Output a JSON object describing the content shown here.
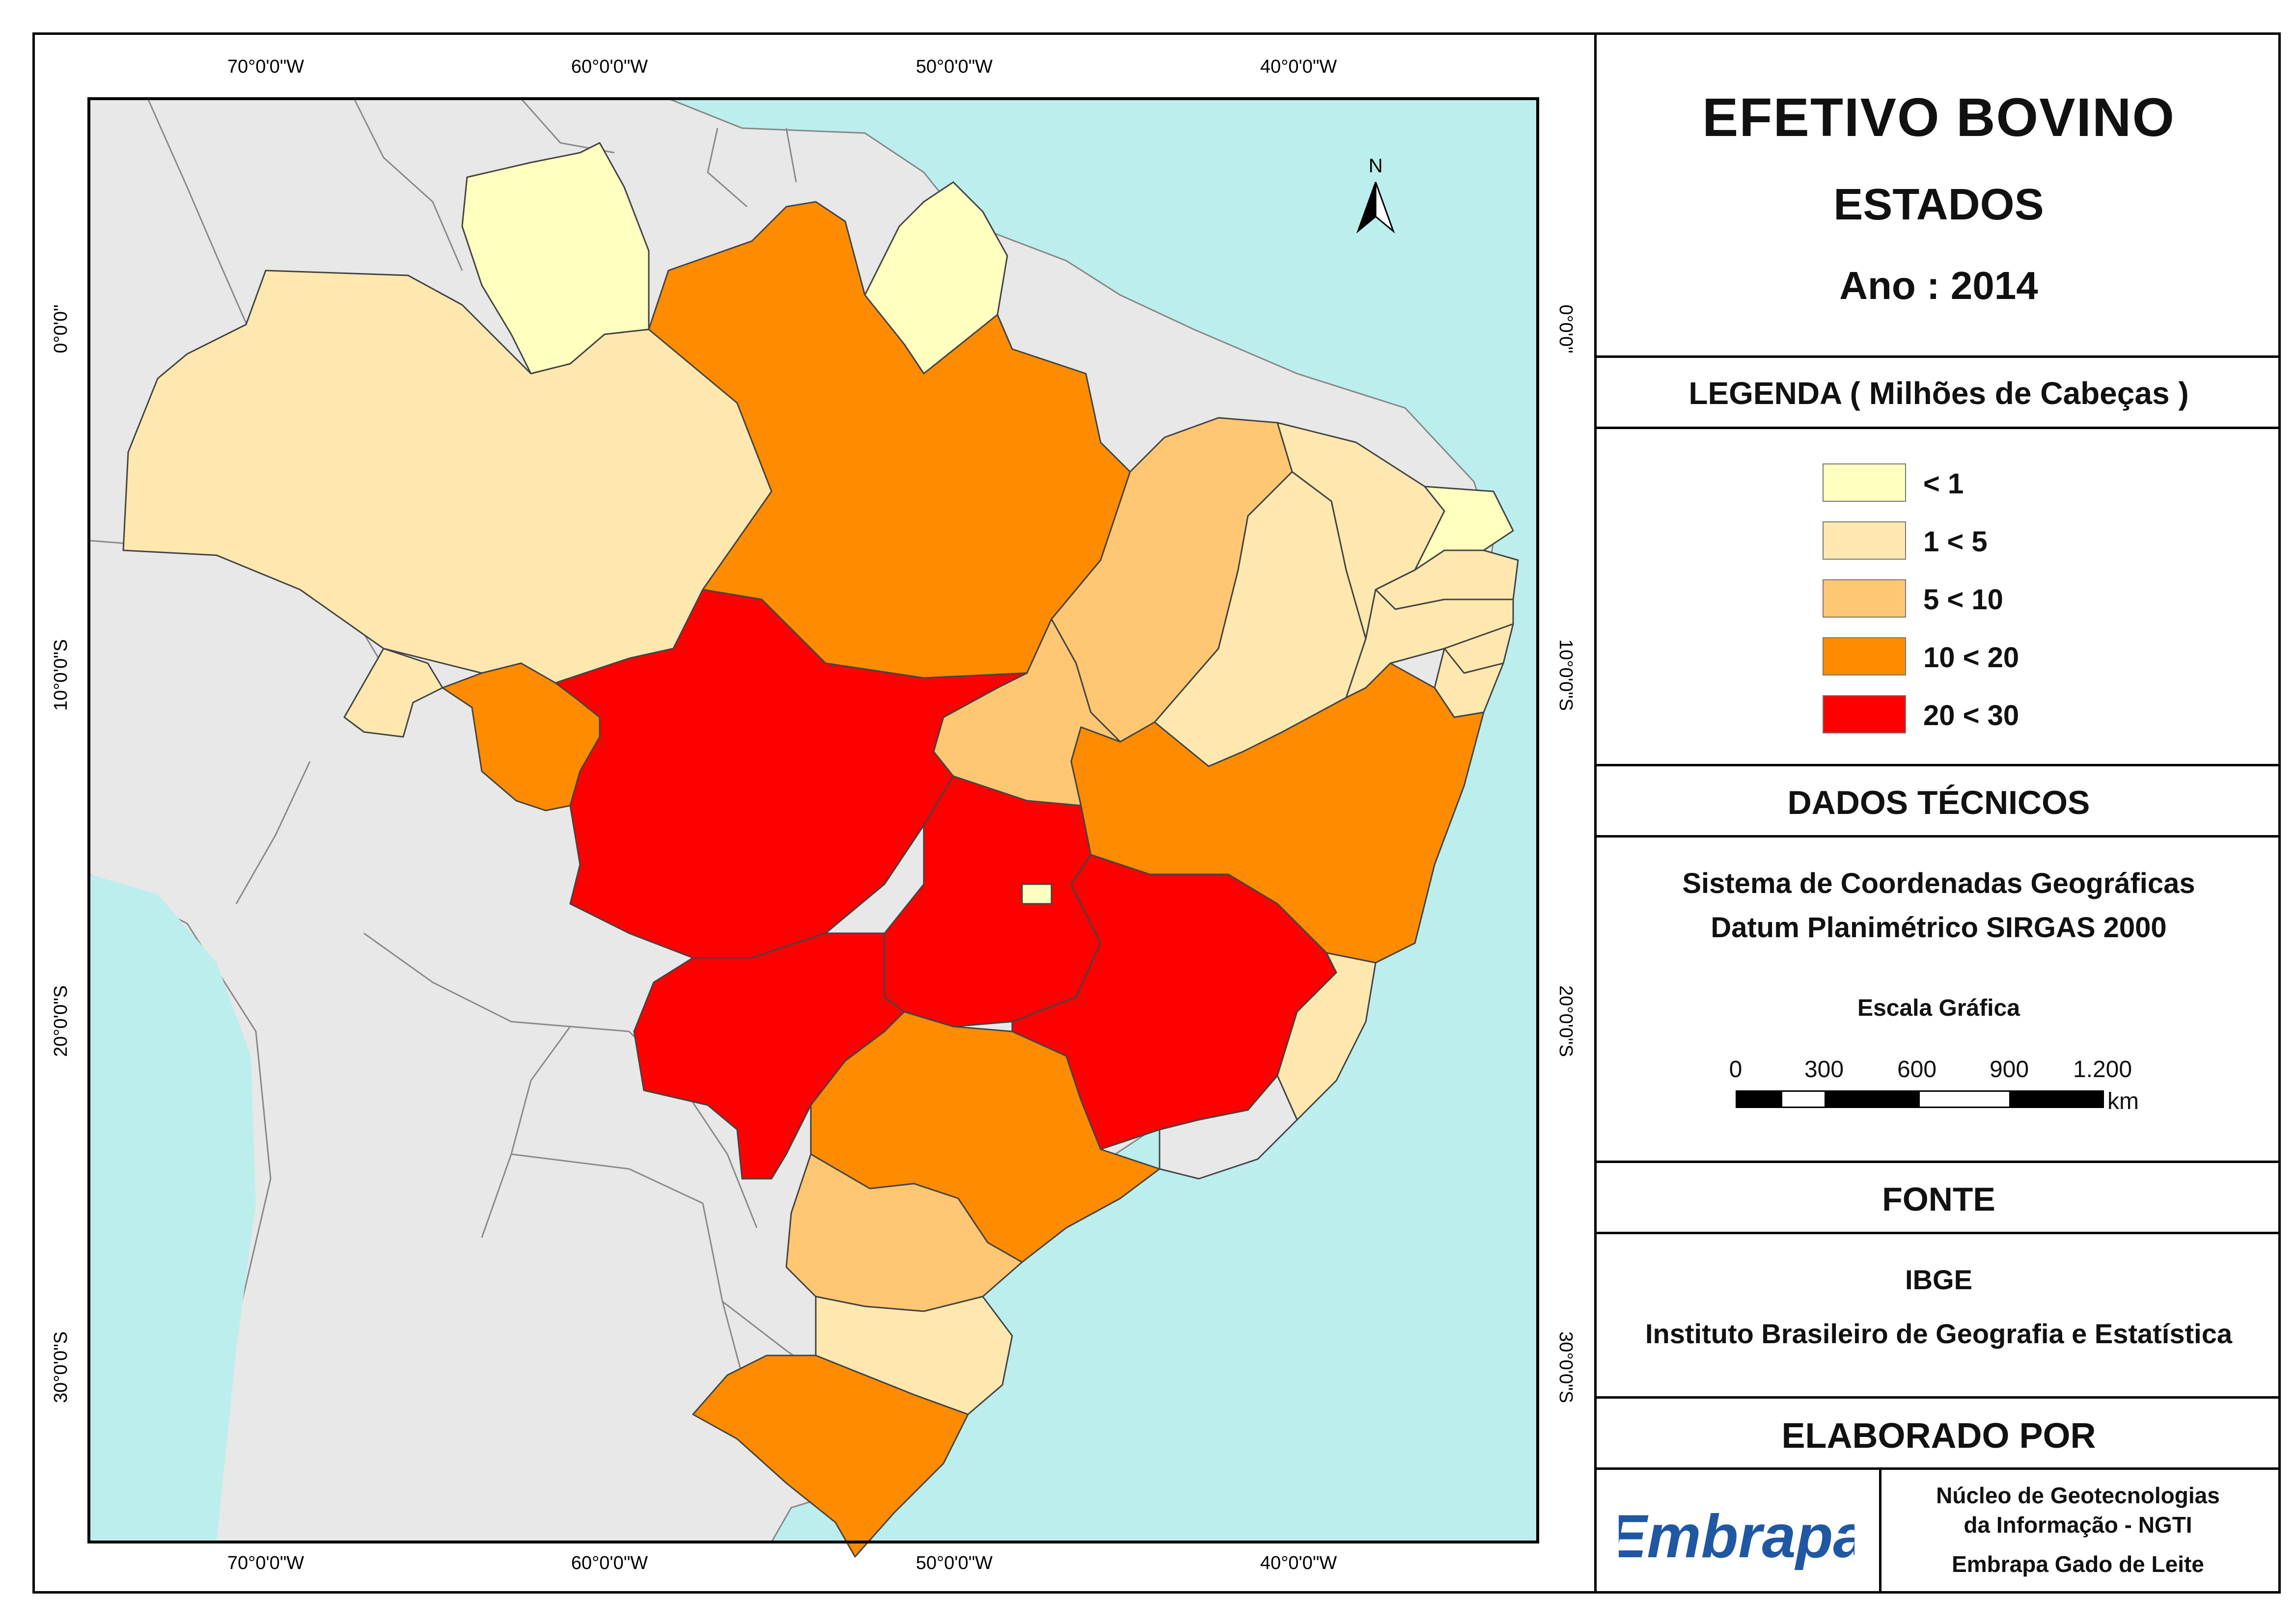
{
  "title": {
    "main": "EFETIVO BOVINO",
    "sub": "ESTADOS",
    "year": "Ano : 2014"
  },
  "legend": {
    "heading": "LEGENDA ( Milhões de Cabeças )",
    "classes": [
      {
        "label": "< 1",
        "color": "#ffffc0"
      },
      {
        "label": "1 < 5",
        "color": "#ffe8b0"
      },
      {
        "label": "5 < 10",
        "color": "#ffc773"
      },
      {
        "label": "10 < 20",
        "color": "#ff8c00"
      },
      {
        "label": "20 < 30",
        "color": "#ff0000"
      }
    ]
  },
  "technical": {
    "heading": "DADOS TÉCNICOS",
    "line1": "Sistema de Coordenadas Geográficas",
    "line2": "Datum Planimétrico SIRGAS 2000",
    "scale_title": "Escala Gráfica",
    "scale_ticks": [
      "0",
      "300",
      "600",
      "900",
      "1.200"
    ],
    "scale_unit": "km"
  },
  "source": {
    "heading": "FONTE",
    "line1": "IBGE",
    "line2": "Instituto Brasileiro de Geografia e Estatística"
  },
  "author": {
    "heading": "ELABORADO POR",
    "logo_text": "Embrapa",
    "line1": "Núcleo de Geotecnologias",
    "line2": "da Informação - NGTI",
    "line3": "Embrapa Gado de Leite"
  },
  "map": {
    "north_label": "N",
    "lon_labels": [
      "70°0'0\"W",
      "60°0'0\"W",
      "50°0'0\"W",
      "40°0'0\"W"
    ],
    "lat_labels": [
      "0°0'0\"",
      "10°0'0\"S",
      "20°0'0\"S",
      "30°0'0\"S"
    ],
    "colors": {
      "ocean": "#bdeeee",
      "land": "#e8e8e8",
      "border": "#444444"
    },
    "states": [
      {
        "code": "RR",
        "class": 0
      },
      {
        "code": "AP",
        "class": 0
      },
      {
        "code": "DF",
        "class": 0
      },
      {
        "code": "AM",
        "class": 1
      },
      {
        "code": "CE",
        "class": 1
      },
      {
        "code": "PI",
        "class": 1
      },
      {
        "code": "RN",
        "class": 0
      },
      {
        "code": "PB",
        "class": 1
      },
      {
        "code": "PE",
        "class": 1
      },
      {
        "code": "AL",
        "class": 1
      },
      {
        "code": "SE",
        "class": 1
      },
      {
        "code": "ES",
        "class": 1
      },
      {
        "code": "SC",
        "class": 1
      },
      {
        "code": "AC",
        "class": 1
      },
      {
        "code": "MA",
        "class": 2
      },
      {
        "code": "TO",
        "class": 2
      },
      {
        "code": "PR",
        "class": 2
      },
      {
        "code": "PA",
        "class": 3
      },
      {
        "code": "RO",
        "class": 3
      },
      {
        "code": "BA",
        "class": 3
      },
      {
        "code": "SP",
        "class": 3
      },
      {
        "code": "RS",
        "class": 3
      },
      {
        "code": "MT",
        "class": 4
      },
      {
        "code": "GO",
        "class": 4
      },
      {
        "code": "MG",
        "class": 4
      },
      {
        "code": "MS",
        "class": 4
      }
    ]
  }
}
